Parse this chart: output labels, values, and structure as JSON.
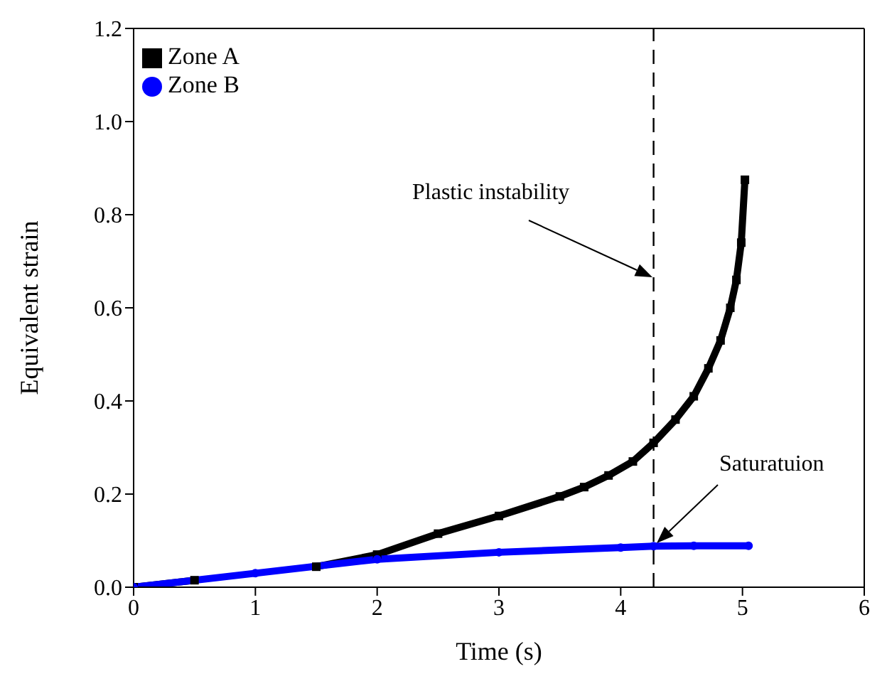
{
  "chart_data": {
    "type": "line",
    "xlabel": "Time (s)",
    "ylabel": "Equivalent strain",
    "series": [
      {
        "name": "Zone A",
        "color": "#000000",
        "marker": "square",
        "x": [
          0,
          0.5,
          1,
          1.5,
          2,
          2.5,
          3,
          3.5,
          3.7,
          3.9,
          4.1,
          4.27,
          4.45,
          4.6,
          4.72,
          4.82,
          4.9,
          4.95,
          4.99,
          5.02
        ],
        "values": [
          0,
          0.015,
          null,
          0.044,
          0.07,
          0.115,
          0.153,
          0.195,
          0.215,
          0.24,
          0.27,
          0.31,
          0.36,
          0.41,
          0.47,
          0.53,
          0.6,
          0.66,
          0.74,
          0.875
        ]
      },
      {
        "name": "Zone B",
        "color": "#0000ff",
        "marker": "circle",
        "x": [
          0,
          1,
          2,
          3,
          4,
          4.27,
          4.6,
          5.05
        ],
        "values": [
          0,
          0.03,
          0.06,
          0.075,
          0.085,
          0.088,
          0.089,
          0.089
        ]
      }
    ],
    "xlim": [
      0,
      6
    ],
    "xticks": [
      0,
      1,
      2,
      3,
      4,
      5,
      6
    ],
    "ylim": [
      0,
      1.2
    ],
    "yticks": [
      {
        "value": 0,
        "label": "0.0"
      },
      {
        "value": 0.2,
        "label": "0.2"
      },
      {
        "value": 0.4,
        "label": "0.4"
      },
      {
        "value": 0.6,
        "label": "0.6"
      },
      {
        "value": 0.8,
        "label": "0.8"
      },
      {
        "value": 1,
        "label": "1.0"
      },
      {
        "value": 1.2,
        "label": "1.2"
      }
    ],
    "ref_lines": [
      {
        "axis": "x",
        "value": 4.27,
        "color": "#000000",
        "line_style": "dashed"
      }
    ],
    "annotations": [
      "Plastic instability",
      "Saturatuion"
    ],
    "legend": "top left"
  }
}
